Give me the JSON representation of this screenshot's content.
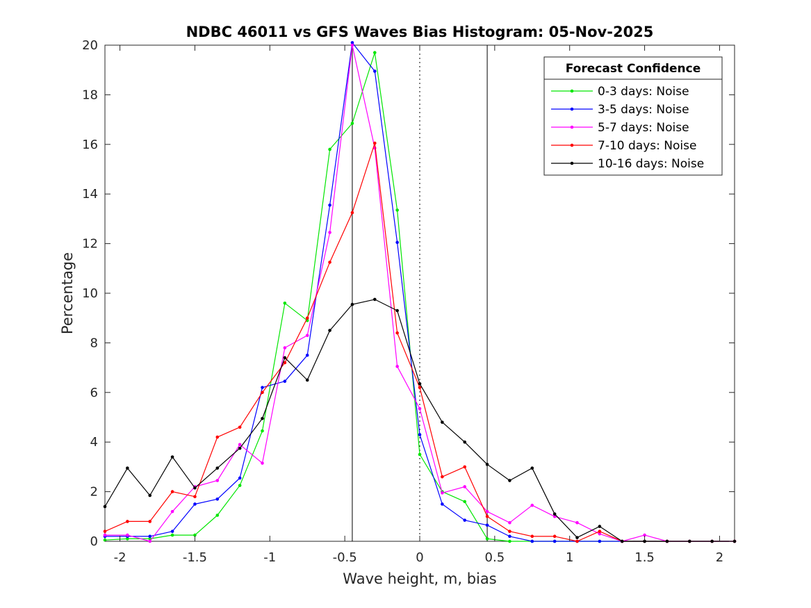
{
  "chart_data": {
    "type": "line",
    "title": "NDBC 46011 vs GFS Waves Bias Histogram: 05-Nov-2025",
    "xlabel": "Wave height, m, bias",
    "ylabel": "Percentage",
    "xlim": [
      -2.1,
      2.1
    ],
    "ylim": [
      0,
      20
    ],
    "xticks": [
      -2,
      -1.5,
      -1,
      -0.5,
      0,
      0.5,
      1,
      1.5,
      2
    ],
    "xtick_labels": [
      "-2",
      "-1.5",
      "-1",
      "-0.5",
      "0",
      "0.5",
      "1",
      "1.5",
      "2"
    ],
    "yticks": [
      0,
      2,
      4,
      6,
      8,
      10,
      12,
      14,
      16,
      18,
      20
    ],
    "ytick_labels": [
      "0",
      "2",
      "4",
      "6",
      "8",
      "10",
      "12",
      "14",
      "16",
      "18",
      "20"
    ],
    "vlines": [
      {
        "x": -0.45,
        "style": "solid",
        "color": "#000000"
      },
      {
        "x": 0.45,
        "style": "solid",
        "color": "#000000"
      },
      {
        "x": 0,
        "style": "dotted",
        "color": "#000000"
      }
    ],
    "x": [
      -2.1,
      -1.95,
      -1.8,
      -1.65,
      -1.5,
      -1.35,
      -1.2,
      -1.05,
      -0.9,
      -0.75,
      -0.6,
      -0.45,
      -0.3,
      -0.15,
      0,
      0.15,
      0.3,
      0.45,
      0.6,
      0.75,
      0.9,
      1.05,
      1.2,
      1.35,
      1.5,
      1.65,
      1.8,
      1.95,
      2.1
    ],
    "series": [
      {
        "name": "0-3 days: Noise",
        "color": "#00e600",
        "values": [
          0.05,
          0.1,
          0.1,
          0.25,
          0.25,
          1.05,
          2.25,
          4.45,
          9.6,
          8.9,
          15.8,
          16.85,
          19.7,
          13.35,
          3.5,
          2.0,
          1.6,
          0.1,
          0,
          0,
          0,
          0,
          0,
          0,
          0,
          0,
          0,
          0,
          0
        ]
      },
      {
        "name": "3-5 days: Noise",
        "color": "#0000ff",
        "values": [
          0.2,
          0.2,
          0.2,
          0.4,
          1.5,
          1.7,
          2.55,
          6.2,
          6.45,
          7.5,
          13.55,
          20.1,
          18.95,
          12.05,
          4.3,
          1.5,
          0.85,
          0.65,
          0.2,
          0,
          0,
          0,
          0,
          0,
          0,
          0,
          0,
          0,
          0
        ]
      },
      {
        "name": "5-7 days: Noise",
        "color": "#ff00ff",
        "values": [
          0.25,
          0.25,
          0.0,
          1.2,
          2.2,
          2.45,
          3.9,
          3.15,
          7.8,
          8.3,
          12.45,
          20.0,
          15.85,
          7.05,
          5.35,
          1.95,
          2.2,
          1.2,
          0.75,
          1.45,
          1.0,
          0.75,
          0.3,
          0,
          0.25,
          0,
          0,
          0,
          0
        ]
      },
      {
        "name": "7-10 days: Noise",
        "color": "#ff0000",
        "values": [
          0.4,
          0.8,
          0.8,
          2.0,
          1.8,
          4.2,
          4.6,
          6.0,
          7.2,
          9.0,
          11.25,
          13.25,
          16.05,
          8.4,
          6.2,
          2.6,
          3.0,
          1.0,
          0.4,
          0.2,
          0.2,
          0.0,
          0.4,
          0,
          0,
          0,
          0,
          0,
          0
        ]
      },
      {
        "name": "10-16 days: Noise",
        "color": "#000000",
        "values": [
          1.4,
          2.95,
          1.85,
          3.4,
          2.15,
          2.95,
          3.75,
          4.95,
          7.4,
          6.5,
          8.5,
          9.55,
          9.75,
          9.3,
          6.35,
          4.8,
          4.0,
          3.1,
          2.45,
          2.95,
          1.1,
          0.15,
          0.6,
          0.0,
          0,
          0,
          0,
          0,
          0
        ]
      }
    ],
    "legend": {
      "title": "Forecast Confidence",
      "location": "top-right"
    }
  }
}
